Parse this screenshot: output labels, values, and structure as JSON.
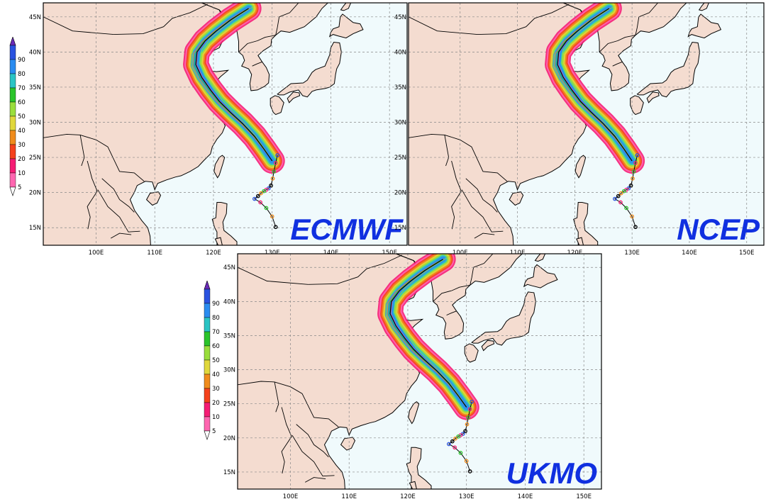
{
  "panels": [
    {
      "id": "ecmwf",
      "model": "ECMWF"
    },
    {
      "id": "ncep",
      "model": "NCEP"
    },
    {
      "id": "ukmo",
      "model": "UKMO"
    }
  ],
  "map": {
    "lon_range": [
      91,
      153
    ],
    "lat_range": [
      12.5,
      47
    ],
    "lon_ticks": [
      "100E",
      "110E",
      "120E",
      "130E",
      "140E",
      "150E"
    ],
    "lat_ticks": [
      "15N",
      "20N",
      "25N",
      "30N",
      "35N",
      "40N",
      "45N"
    ],
    "gridlines": true,
    "land_color": "#f4dcd0",
    "ocean_color": "#f0fafc"
  },
  "colorbar": {
    "labels": [
      "5",
      "10",
      "20",
      "30",
      "40",
      "50",
      "60",
      "70",
      "80",
      "90"
    ],
    "colors": [
      "#ff66b0",
      "#f51c74",
      "#f5421c",
      "#f08c1c",
      "#e0d83c",
      "#9ade3c",
      "#2ac42a",
      "#2ac4c4",
      "#2a8cf0",
      "#2a52e0",
      "#6a2ab8"
    ]
  },
  "track": {
    "observed_lons": [
      130.9,
      130.6,
      130.3,
      130.1,
      129.8,
      129.4,
      129.0,
      128.6,
      128.1,
      127.6,
      127.0,
      128.0,
      129.0,
      130.0,
      130.6
    ],
    "observed_lats": [
      25.3,
      24.2,
      23.0,
      22.0,
      21.0,
      20.6,
      20.4,
      20.2,
      19.9,
      19.5,
      19.1,
      18.6,
      17.8,
      16.6,
      15.1
    ],
    "forecast_lons": [
      130.0,
      128.6,
      127.0,
      125.0,
      122.8,
      121.0,
      119.5,
      118.0,
      117.0,
      117.2,
      118.6,
      120.5,
      123.0,
      126.0
    ],
    "forecast_lats": [
      24.5,
      26.2,
      28.0,
      29.8,
      31.5,
      33.0,
      34.6,
      36.4,
      38.2,
      40.0,
      41.6,
      43.0,
      44.6,
      46.2
    ]
  }
}
